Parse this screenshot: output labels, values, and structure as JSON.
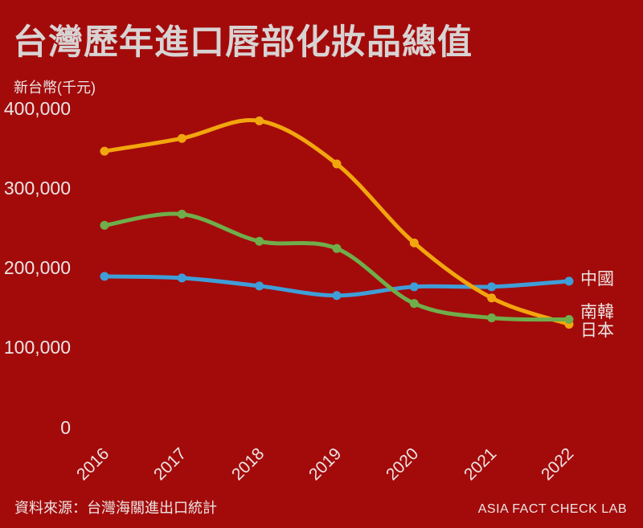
{
  "page": {
    "background_color": "#a30b0b",
    "title_color": "#d8d3d3",
    "label_color": "#ece5e5"
  },
  "title": "台灣歷年進口唇部化妝品總值",
  "y_axis": {
    "unit_label": "新台幣(千元)",
    "tick_labels": [
      "400,000",
      "300,000",
      "200,000",
      "100,000",
      "0"
    ]
  },
  "x_axis": {
    "tick_labels": [
      "2016",
      "2017",
      "2018",
      "2019",
      "2020",
      "2021",
      "2022"
    ]
  },
  "footer": {
    "source": "資料來源：台灣海關進出口統計",
    "credit": "ASIA FACT CHECK LAB"
  },
  "chart_data": {
    "type": "line",
    "title": "台灣歷年進口唇部化妝品總值",
    "ylabel": "新台幣(千元)",
    "x": [
      2016,
      2017,
      2018,
      2019,
      2020,
      2021,
      2022
    ],
    "ylim": [
      0,
      400000
    ],
    "grid": false,
    "marker": "circle",
    "smooth": true,
    "legend_position": "right-end-labels",
    "series": [
      {
        "key": "japan",
        "name": "日本",
        "color": "#f2a60d",
        "values": [
          346000,
          362000,
          384000,
          330000,
          231000,
          162000,
          129000
        ]
      },
      {
        "key": "south-korea",
        "name": "南韓",
        "color": "#6fae4b",
        "values": [
          253000,
          267000,
          233000,
          224000,
          155000,
          137000,
          135000
        ]
      },
      {
        "key": "china",
        "name": "中國",
        "color": "#3f9ed8",
        "values": [
          189000,
          187000,
          177000,
          165000,
          176000,
          176000,
          183000
        ]
      }
    ]
  }
}
